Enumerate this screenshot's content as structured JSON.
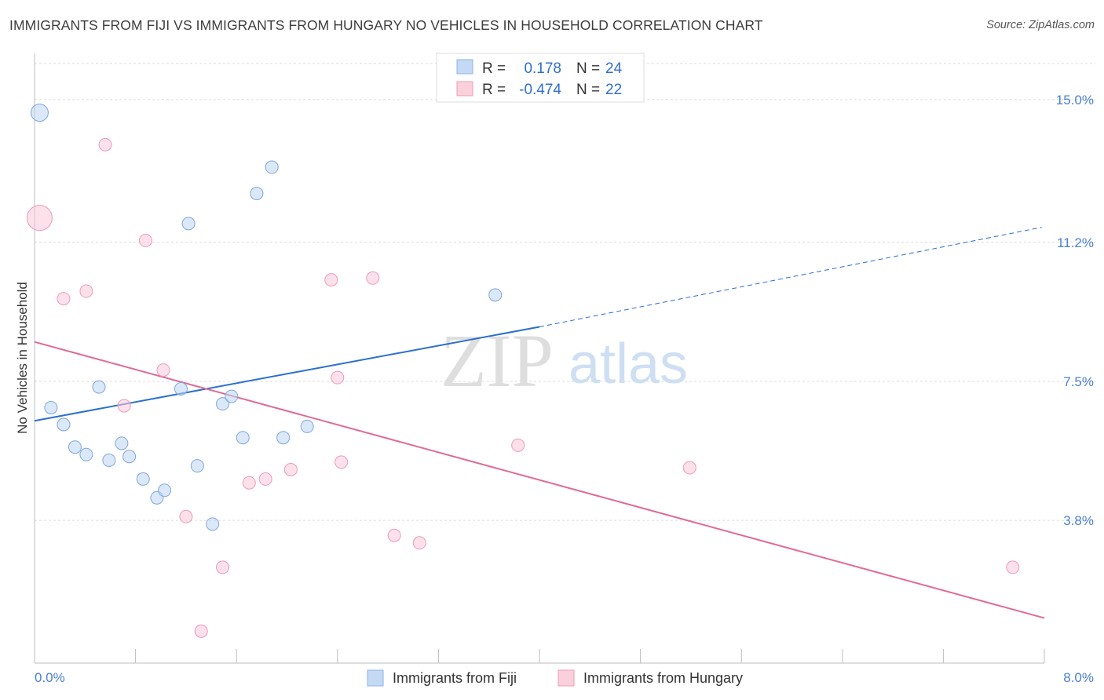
{
  "title": "IMMIGRANTS FROM FIJI VS IMMIGRANTS FROM HUNGARY NO VEHICLES IN HOUSEHOLD CORRELATION CHART",
  "source": "Source: ZipAtlas.com",
  "watermark": {
    "zip": "ZIP",
    "atlas": "atlas"
  },
  "legend_top": {
    "rows": [
      {
        "series": "fiji",
        "r_label": "R =",
        "r_value": "0.178",
        "n_label": "N =",
        "n_value": "24"
      },
      {
        "series": "hungary",
        "r_label": "R =",
        "r_value": "-0.474",
        "n_label": "N =",
        "n_value": "22"
      }
    ]
  },
  "legend_bottom": {
    "fiji": "Immigrants from Fiji",
    "hungary": "Immigrants from Hungary"
  },
  "chart_data": {
    "type": "scatter",
    "title": "IMMIGRANTS FROM FIJI VS IMMIGRANTS FROM HUNGARY NO VEHICLES IN HOUSEHOLD CORRELATION CHART",
    "xlabel": "",
    "ylabel": "No Vehicles in Household",
    "xlim": [
      0,
      8.0
    ],
    "ylim": [
      0,
      16.0
    ],
    "x_tick_labels": [
      "0.0%",
      "8.0%"
    ],
    "y_ticks": [
      3.8,
      7.5,
      11.2,
      15.0
    ],
    "y_tick_labels": [
      "3.8%",
      "7.5%",
      "11.2%",
      "15.0%"
    ],
    "grid": true,
    "colors": {
      "fiji": "#a9c8f0",
      "fiji_line": "#2b6fcf",
      "hungary": "#f7b6c9",
      "hungary_line": "#e06a96"
    },
    "series": [
      {
        "name": "Immigrants from Fiji",
        "key": "fiji",
        "points": [
          {
            "x": 0.04,
            "y": 14.65,
            "big": true
          },
          {
            "x": 0.13,
            "y": 6.8
          },
          {
            "x": 0.23,
            "y": 6.35
          },
          {
            "x": 0.32,
            "y": 5.75
          },
          {
            "x": 0.41,
            "y": 5.55
          },
          {
            "x": 0.51,
            "y": 7.35
          },
          {
            "x": 0.59,
            "y": 5.4
          },
          {
            "x": 0.69,
            "y": 5.85
          },
          {
            "x": 0.75,
            "y": 5.5
          },
          {
            "x": 0.86,
            "y": 4.9
          },
          {
            "x": 0.97,
            "y": 4.4
          },
          {
            "x": 1.03,
            "y": 4.6
          },
          {
            "x": 1.16,
            "y": 7.3
          },
          {
            "x": 1.22,
            "y": 11.7
          },
          {
            "x": 1.29,
            "y": 5.25
          },
          {
            "x": 1.41,
            "y": 3.7
          },
          {
            "x": 1.49,
            "y": 6.9
          },
          {
            "x": 1.56,
            "y": 7.1
          },
          {
            "x": 1.65,
            "y": 6.0
          },
          {
            "x": 1.76,
            "y": 12.5
          },
          {
            "x": 1.88,
            "y": 13.2
          },
          {
            "x": 1.97,
            "y": 6.0
          },
          {
            "x": 2.16,
            "y": 6.3
          },
          {
            "x": 3.65,
            "y": 9.8
          }
        ],
        "trend": {
          "x0": 0.0,
          "y0": 6.45,
          "x1": 4.0,
          "y1": 8.95,
          "dash_x1": 7.98,
          "dash_y1": 11.6
        }
      },
      {
        "name": "Immigrants from Hungary",
        "key": "hungary",
        "points": [
          {
            "x": 0.04,
            "y": 11.85,
            "big": true
          },
          {
            "x": 0.23,
            "y": 9.7
          },
          {
            "x": 0.41,
            "y": 9.9
          },
          {
            "x": 0.56,
            "y": 13.8
          },
          {
            "x": 0.71,
            "y": 6.85
          },
          {
            "x": 0.88,
            "y": 11.25
          },
          {
            "x": 1.02,
            "y": 7.8
          },
          {
            "x": 1.2,
            "y": 3.9
          },
          {
            "x": 1.32,
            "y": 0.85
          },
          {
            "x": 1.49,
            "y": 2.55
          },
          {
            "x": 1.7,
            "y": 4.8
          },
          {
            "x": 1.83,
            "y": 4.9
          },
          {
            "x": 2.03,
            "y": 5.15
          },
          {
            "x": 2.35,
            "y": 10.2
          },
          {
            "x": 2.4,
            "y": 7.6
          },
          {
            "x": 2.43,
            "y": 5.35
          },
          {
            "x": 2.68,
            "y": 10.25
          },
          {
            "x": 2.85,
            "y": 3.4
          },
          {
            "x": 3.05,
            "y": 3.2
          },
          {
            "x": 3.83,
            "y": 5.8
          },
          {
            "x": 5.19,
            "y": 5.2
          },
          {
            "x": 7.75,
            "y": 2.55
          }
        ],
        "trend": {
          "x0": 0.0,
          "y0": 8.55,
          "x1": 8.0,
          "y1": 1.2
        }
      }
    ]
  }
}
